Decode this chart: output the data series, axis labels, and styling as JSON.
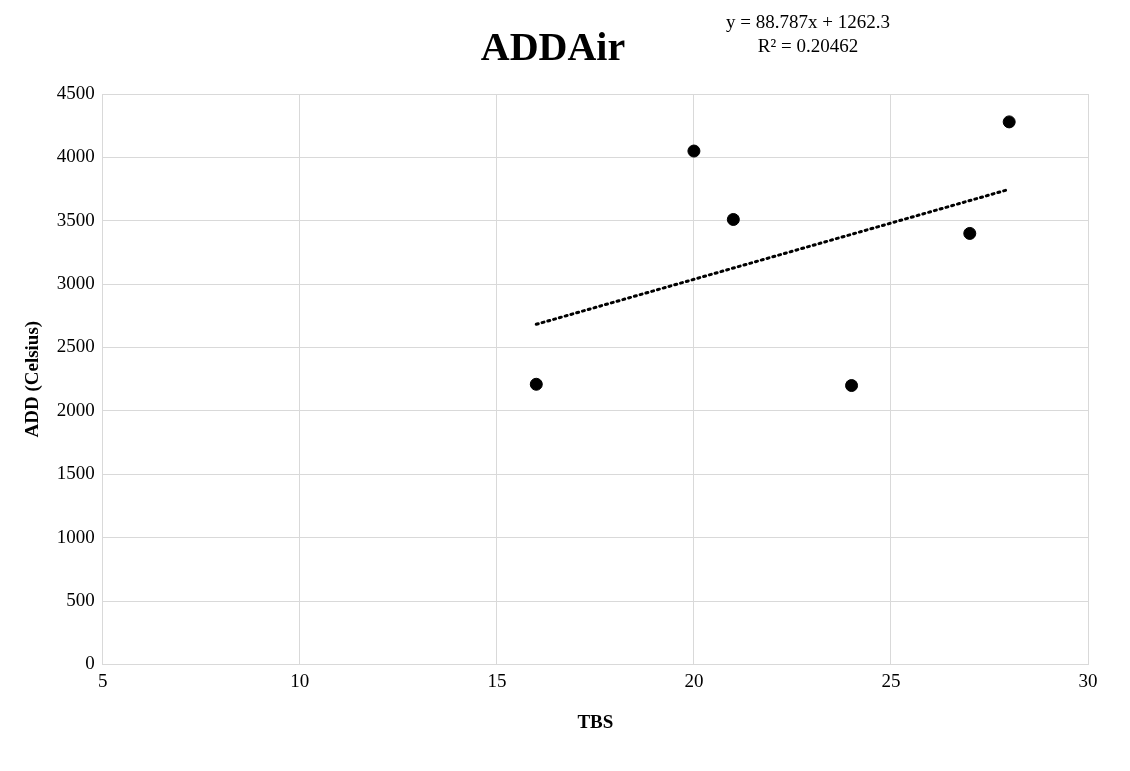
{
  "chart_data": {
    "type": "scatter",
    "title": "ADDAir",
    "xlabel": "TBS",
    "ylabel": "ADD (Celsius)",
    "xlim": [
      5,
      30
    ],
    "xticks": [
      5,
      10,
      15,
      20,
      25,
      30
    ],
    "ylim": [
      0,
      4500
    ],
    "yticks": [
      0,
      500,
      1000,
      1500,
      2000,
      2500,
      3000,
      3500,
      4000,
      4500
    ],
    "grid": true,
    "legend": false,
    "marker": "circle",
    "series": [
      {
        "color": "#000000",
        "x": [
          16,
          20,
          21,
          24,
          27,
          28
        ],
        "values": [
          2210,
          4050,
          3510,
          2200,
          3400,
          4280
        ]
      },
      {
        "type": "line",
        "color": "#000000",
        "line_style": "dotted",
        "marker": "none",
        "x": [
          16,
          28
        ],
        "values": [
          2683,
          3748
        ]
      }
    ],
    "annotations": [
      "y = 88.787x + 1262.3",
      "R² = 0.20462"
    ]
  }
}
